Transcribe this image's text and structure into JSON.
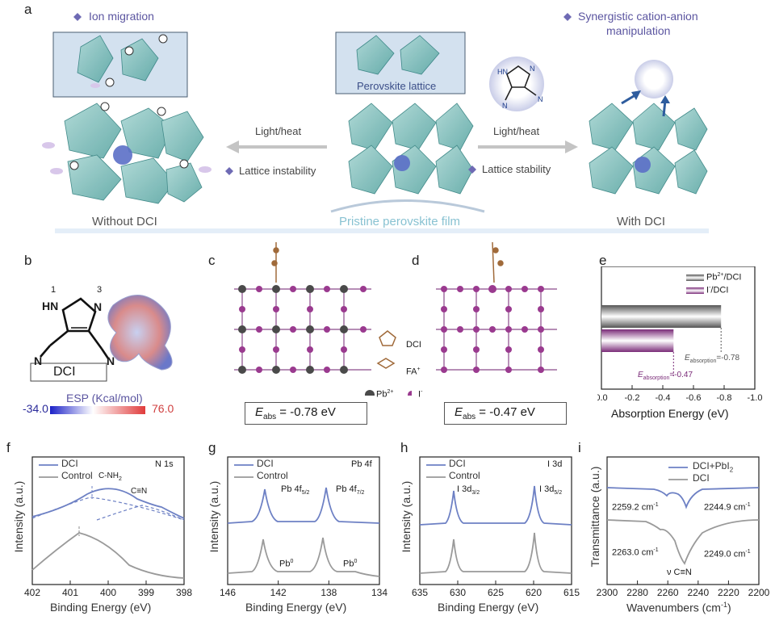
{
  "panel_a": {
    "letter": "a",
    "ion_migration": "Ion migration",
    "synergistic": "Synergistic cation-anion",
    "manipulation": "manipulation",
    "perovskite_lattice": "Perovskite lattice",
    "light_heat_left": "Light/heat",
    "light_heat_right": "Light/heat",
    "lattice_instability": "Lattice instability",
    "lattice_stability": "Lattice stability",
    "without_dci": "Without DCI",
    "pristine": "Pristine perovskite film",
    "with_dci": "With DCI"
  },
  "panel_b": {
    "letter": "b",
    "n1": "1",
    "n3": "3",
    "hn": "HN",
    "n_ring": "N",
    "n_left": "N",
    "n_right": "N",
    "name": "DCI",
    "esp_label": "ESP (Kcal/mol)",
    "esp_min": "-34.0",
    "esp_max": "76.0"
  },
  "panel_c": {
    "letter": "c",
    "eabs": "E",
    "eabs_sub": "abs",
    "eabs_val": " = -0.78 eV",
    "legend_dci": "DCI",
    "legend_fa": "FA",
    "legend_fa_sup": "+",
    "legend_pb": "Pb",
    "legend_pb_sup": "2+",
    "legend_i": "I",
    "legend_i_sup": "-"
  },
  "panel_d": {
    "letter": "d",
    "eabs": "E",
    "eabs_sub": "abs",
    "eabs_val": " = -0.47 eV"
  },
  "panel_e": {
    "letter": "e",
    "legend_pb": "Pb",
    "legend_pb_sup": "2+",
    "legend_pb_rest": "/DCI",
    "legend_i": "I",
    "legend_i_sup": "-",
    "legend_i_rest": "/DCI",
    "ann_pb_e": "E",
    "ann_pb_sub": "absorption",
    "ann_pb_val": "=-0.78",
    "ann_i_e": "E",
    "ann_i_sub": "absorption",
    "ann_i_val": "=-0.47",
    "xlabel": "Absorption Energy (eV)"
  },
  "panel_f": {
    "letter": "f",
    "legend_dci": "DCI",
    "legend_control": "Control",
    "tag": "N 1s",
    "peak1": "C-NH",
    "peak1_sub": "2",
    "peak2": "C≡N",
    "ylabel": "Intensity (a.u.)",
    "xlabel": "Binding Energy (eV)"
  },
  "panel_g": {
    "letter": "g",
    "legend_dci": "DCI",
    "legend_control": "Control",
    "tag": "Pb 4f",
    "peak1": "Pb 4f",
    "peak1_sub": "5/2",
    "peak2": "Pb 4f",
    "peak2_sub": "7/2",
    "pb0_a": "Pb",
    "pb0_a_sup": "0",
    "pb0_b": "Pb",
    "pb0_b_sup": "0",
    "ylabel": "Intensity (a.u.)",
    "xlabel": "Binding Energy (eV)"
  },
  "panel_h": {
    "letter": "h",
    "legend_dci": "DCI",
    "legend_control": "Control",
    "tag": "I 3d",
    "peak1": "I 3d",
    "peak1_sub": "3/2",
    "peak2": "I 3d",
    "peak2_sub": "5/2",
    "ylabel": "Intensity (a.u.)",
    "xlabel": "Binding Energy (eV)"
  },
  "panel_i": {
    "letter": "i",
    "legend_dci_pb": "DCI+PbI",
    "legend_dci_pb_sub": "2",
    "legend_dci": "DCI",
    "ann1": "2259.2 cm",
    "ann1_sup": "-1",
    "ann2": "2244.9 cm",
    "ann2_sup": "-1",
    "ann3": "2263.0 cm",
    "ann3_sup": "-1",
    "ann4": "2249.0 cm",
    "ann4_sup": "-1",
    "nu": "ν C≡N",
    "ylabel": "Transmittance (a.u.)",
    "xlabel": "Wavenumbers (cm",
    "xlabel_sup": "-1",
    "xlabel_end": ")"
  },
  "colors": {
    "dci_blue": "#6d80c4",
    "control_gray": "#9a9a9a",
    "purple": "#5b55a0",
    "teal": "#5fa8a8",
    "pb_dark": "#4a4a4a",
    "iodine": "#9a3a8f"
  },
  "chart_data": [
    {
      "panel": "e",
      "type": "bar",
      "orientation": "horizontal",
      "categories": [
        "Pb2+/DCI",
        "I-/DCI"
      ],
      "values": [
        -0.78,
        -0.47
      ],
      "xlim": [
        0.0,
        -1.0
      ],
      "xticks": [
        "0.0",
        "-0.2",
        "-0.4",
        "-0.6",
        "-0.8",
        "-1.0"
      ],
      "xlabel": "Absorption Energy (eV)",
      "legend": "top-right"
    },
    {
      "panel": "f",
      "type": "line",
      "series": [
        {
          "name": "DCI",
          "peaks_ev": [
            400.4,
            399.1
          ]
        },
        {
          "name": "Control",
          "peaks_ev": [
            400.7
          ]
        }
      ],
      "xlim": [
        402,
        398
      ],
      "xticks": [
        "402",
        "401",
        "400",
        "399",
        "398"
      ],
      "xlabel": "Binding Energy (eV)",
      "ylabel": "Intensity (a.u.)",
      "legend": "top-left"
    },
    {
      "panel": "g",
      "type": "line",
      "series": [
        {
          "name": "DCI",
          "peaks_ev": [
            143.0,
            138.1
          ]
        },
        {
          "name": "Control",
          "peaks_ev": [
            143.1,
            138.2
          ]
        }
      ],
      "xlim": [
        146,
        134
      ],
      "xticks": [
        "146",
        "142",
        "138",
        "134"
      ],
      "xlabel": "Binding Energy (eV)",
      "ylabel": "Intensity (a.u.)",
      "legend": "top-left"
    },
    {
      "panel": "h",
      "type": "line",
      "series": [
        {
          "name": "DCI",
          "peaks_ev": [
            630.3,
            618.8
          ]
        },
        {
          "name": "Control",
          "peaks_ev": [
            630.4,
            618.9
          ]
        }
      ],
      "xlim": [
        635,
        615
      ],
      "xticks": [
        "635",
        "630",
        "625",
        "620",
        "615"
      ],
      "xlabel": "Binding Energy (eV)",
      "ylabel": "Intensity (a.u.)",
      "legend": "top-left"
    },
    {
      "panel": "i",
      "type": "line",
      "series": [
        {
          "name": "DCI+PbI2",
          "dips_cm": [
            2259.2,
            2244.9
          ]
        },
        {
          "name": "DCI",
          "dips_cm": [
            2263.0,
            2249.0
          ]
        }
      ],
      "xlim": [
        2300,
        2200
      ],
      "xticks": [
        "2300",
        "2280",
        "2260",
        "2240",
        "2220",
        "2200"
      ],
      "xlabel": "Wavenumbers (cm-1)",
      "ylabel": "Transmittance (a.u.)",
      "legend": "top-right"
    }
  ]
}
